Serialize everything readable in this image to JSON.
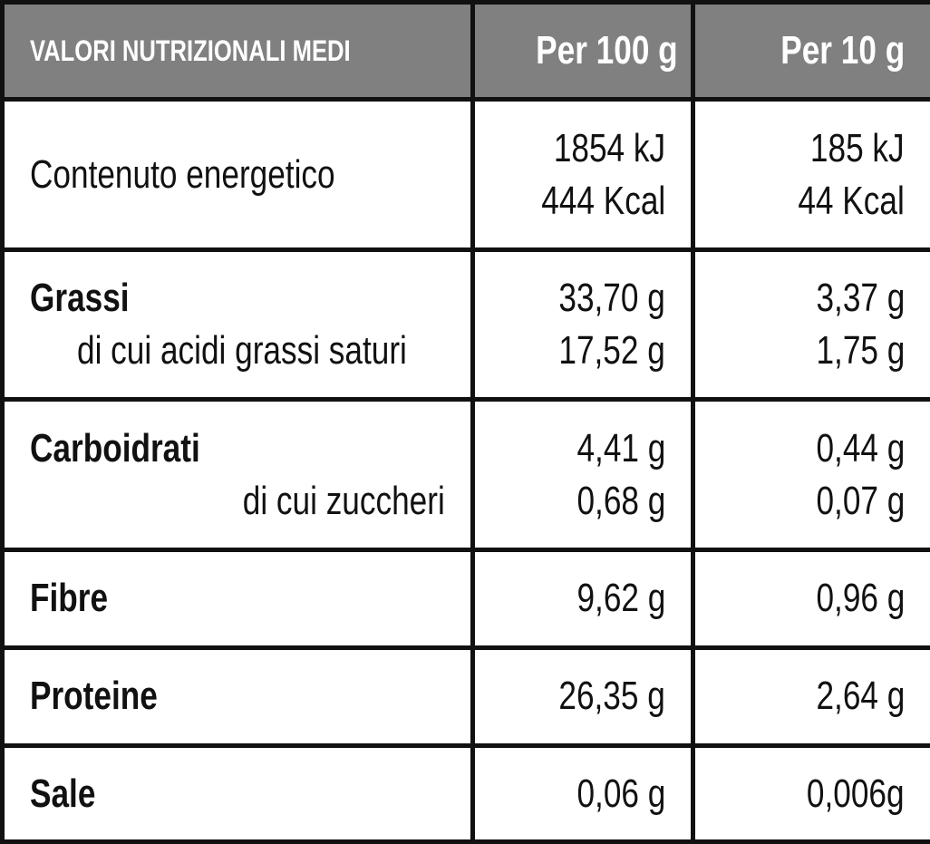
{
  "table": {
    "header": [
      "VALORI NUTRIZIONALI MEDI",
      "Per 100 g",
      "Per 10 g"
    ],
    "rows": [
      {
        "name": "Contenuto energetico",
        "per_100g": [
          "1854 kJ",
          "444 Kcal"
        ],
        "per_10g": [
          "185 kJ",
          "44 Kcal"
        ]
      },
      {
        "name": "Grassi",
        "sub": "di cui acidi grassi saturi",
        "per_100g": [
          "33,70 g",
          "17,52 g"
        ],
        "per_10g": [
          "3,37 g",
          "1,75 g"
        ]
      },
      {
        "name": "Carboidrati",
        "sub": "di cui zuccheri",
        "per_100g": [
          "4,41 g",
          "0,68 g"
        ],
        "per_10g": [
          "0,44 g",
          "0,07 g"
        ]
      },
      {
        "name": "Fibre",
        "per_100g": [
          "9,62 g"
        ],
        "per_10g": [
          "0,96 g"
        ]
      },
      {
        "name": "Proteine",
        "per_100g": [
          "26,35 g"
        ],
        "per_10g": [
          "2,64 g"
        ]
      },
      {
        "name": "Sale",
        "per_100g": [
          "0,06 g"
        ],
        "per_10g": [
          "0,006g"
        ]
      }
    ]
  }
}
